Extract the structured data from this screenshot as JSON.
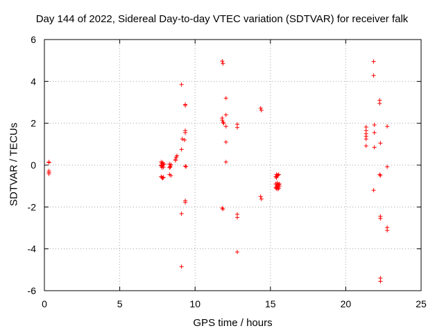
{
  "chart_data": {
    "type": "scatter",
    "title": "Day 144 of 2022, Sidereal Day-to-day VTEC variation (SDTVAR) for receiver falk",
    "xlabel": "GPS time / hours",
    "ylabel": "SDTVAR / TECUs",
    "xlim": [
      0,
      25
    ],
    "ylim": [
      -6,
      6
    ],
    "xticks": [
      0,
      5,
      10,
      15,
      20,
      25
    ],
    "yticks": [
      -6,
      -4,
      -2,
      0,
      2,
      4,
      6
    ],
    "grid": true,
    "marker": "+",
    "color": "#ff0000",
    "series": [
      {
        "name": "SDTVAR",
        "points": [
          [
            0.3,
            0.15
          ],
          [
            0.3,
            0.12
          ],
          [
            0.3,
            -0.28
          ],
          [
            0.3,
            -0.35
          ],
          [
            0.3,
            -0.42
          ],
          [
            7.75,
            0.15
          ],
          [
            7.8,
            0.08
          ],
          [
            7.75,
            0.0
          ],
          [
            7.8,
            -0.05
          ],
          [
            7.85,
            0.02
          ],
          [
            7.9,
            -0.1
          ],
          [
            7.8,
            -0.12
          ],
          [
            7.95,
            0.05
          ],
          [
            7.85,
            0.12
          ],
          [
            7.75,
            -0.02
          ],
          [
            7.75,
            -0.55
          ],
          [
            7.8,
            -0.6
          ],
          [
            7.9,
            -0.58
          ],
          [
            7.85,
            -0.62
          ],
          [
            8.3,
            0.05
          ],
          [
            8.35,
            -0.05
          ],
          [
            8.3,
            -0.12
          ],
          [
            8.4,
            0.02
          ],
          [
            8.35,
            -0.1
          ],
          [
            8.3,
            -0.45
          ],
          [
            8.4,
            -0.5
          ],
          [
            8.7,
            0.22
          ],
          [
            8.7,
            0.28
          ],
          [
            8.75,
            0.38
          ],
          [
            8.8,
            0.45
          ],
          [
            9.1,
            0.75
          ],
          [
            9.15,
            1.25
          ],
          [
            9.1,
            3.85
          ],
          [
            9.1,
            -2.32
          ],
          [
            9.1,
            -4.85
          ],
          [
            9.3,
            1.2
          ],
          [
            9.35,
            1.55
          ],
          [
            9.35,
            1.65
          ],
          [
            9.35,
            2.85
          ],
          [
            9.35,
            2.9
          ],
          [
            9.35,
            -0.05
          ],
          [
            9.4,
            -0.07
          ],
          [
            9.35,
            -1.7
          ],
          [
            9.35,
            -1.78
          ],
          [
            11.8,
            4.97
          ],
          [
            11.85,
            4.85
          ],
          [
            11.8,
            2.25
          ],
          [
            11.8,
            2.15
          ],
          [
            11.85,
            2.05
          ],
          [
            11.9,
            2.0
          ],
          [
            11.8,
            -2.05
          ],
          [
            11.85,
            -2.1
          ],
          [
            12.05,
            3.2
          ],
          [
            12.05,
            2.4
          ],
          [
            12.05,
            1.85
          ],
          [
            12.05,
            1.1
          ],
          [
            12.05,
            0.15
          ],
          [
            12.8,
            1.95
          ],
          [
            12.8,
            1.8
          ],
          [
            12.8,
            -2.35
          ],
          [
            12.8,
            -2.5
          ],
          [
            12.8,
            -4.15
          ],
          [
            14.35,
            2.72
          ],
          [
            14.4,
            2.62
          ],
          [
            14.35,
            -1.5
          ],
          [
            14.4,
            -1.62
          ],
          [
            15.35,
            -0.55
          ],
          [
            15.4,
            -0.6
          ],
          [
            15.45,
            -0.5
          ],
          [
            15.5,
            -0.48
          ],
          [
            15.55,
            -0.45
          ],
          [
            15.4,
            -0.45
          ],
          [
            15.35,
            -0.9
          ],
          [
            15.4,
            -1.0
          ],
          [
            15.45,
            -1.05
          ],
          [
            15.5,
            -0.95
          ],
          [
            15.55,
            -1.1
          ],
          [
            15.6,
            -1.0
          ],
          [
            15.45,
            -0.85
          ],
          [
            15.5,
            -1.15
          ],
          [
            15.6,
            -0.9
          ],
          [
            15.35,
            -1.08
          ],
          [
            15.55,
            -0.92
          ],
          [
            15.4,
            -1.12
          ],
          [
            21.35,
            1.82
          ],
          [
            21.35,
            1.65
          ],
          [
            21.35,
            1.5
          ],
          [
            21.35,
            1.38
          ],
          [
            21.35,
            1.25
          ],
          [
            21.35,
            0.92
          ],
          [
            21.85,
            4.95
          ],
          [
            21.85,
            4.28
          ],
          [
            21.9,
            1.92
          ],
          [
            21.9,
            1.55
          ],
          [
            21.9,
            0.85
          ],
          [
            21.85,
            -1.2
          ],
          [
            22.25,
            3.1
          ],
          [
            22.25,
            2.95
          ],
          [
            22.3,
            1.05
          ],
          [
            22.25,
            -0.45
          ],
          [
            22.3,
            -0.5
          ],
          [
            22.3,
            -2.45
          ],
          [
            22.3,
            -2.55
          ],
          [
            22.3,
            -5.4
          ],
          [
            22.3,
            -5.55
          ],
          [
            22.75,
            1.85
          ],
          [
            22.75,
            -0.08
          ],
          [
            22.75,
            -2.98
          ],
          [
            22.75,
            -3.12
          ]
        ]
      }
    ]
  }
}
